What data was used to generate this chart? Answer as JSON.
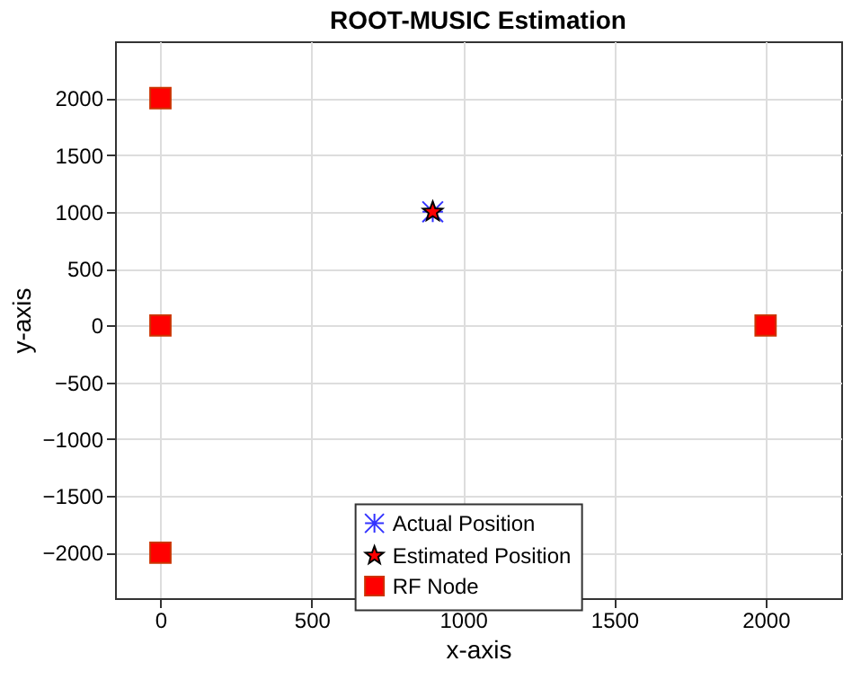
{
  "chart_data": {
    "type": "scatter",
    "title": "ROOT-MUSIC Estimation",
    "xlabel": "x-axis",
    "ylabel": "y-axis",
    "xlim": [
      -150,
      2250
    ],
    "xticks": [
      0,
      500,
      1000,
      1500,
      2000
    ],
    "ylim": [
      -2400,
      2500
    ],
    "yticks": [
      -2000,
      -1500,
      -1000,
      -500,
      0,
      500,
      1000,
      1500,
      2000
    ],
    "grid": true,
    "legend": "bottom",
    "series": [
      {
        "name": "Actual Position",
        "color": "#3333ff",
        "marker": "cross",
        "x": [
          900
        ],
        "values": [
          1000
        ]
      },
      {
        "name": "Estimated Position",
        "color": "#ff0000",
        "marker": "star",
        "x": [
          900
        ],
        "values": [
          1000
        ]
      },
      {
        "name": "RF Node",
        "color": "#ff0000",
        "marker": "square",
        "x": [
          0,
          0,
          0,
          2000
        ],
        "values": [
          2000,
          0,
          -2000,
          0
        ]
      }
    ]
  }
}
